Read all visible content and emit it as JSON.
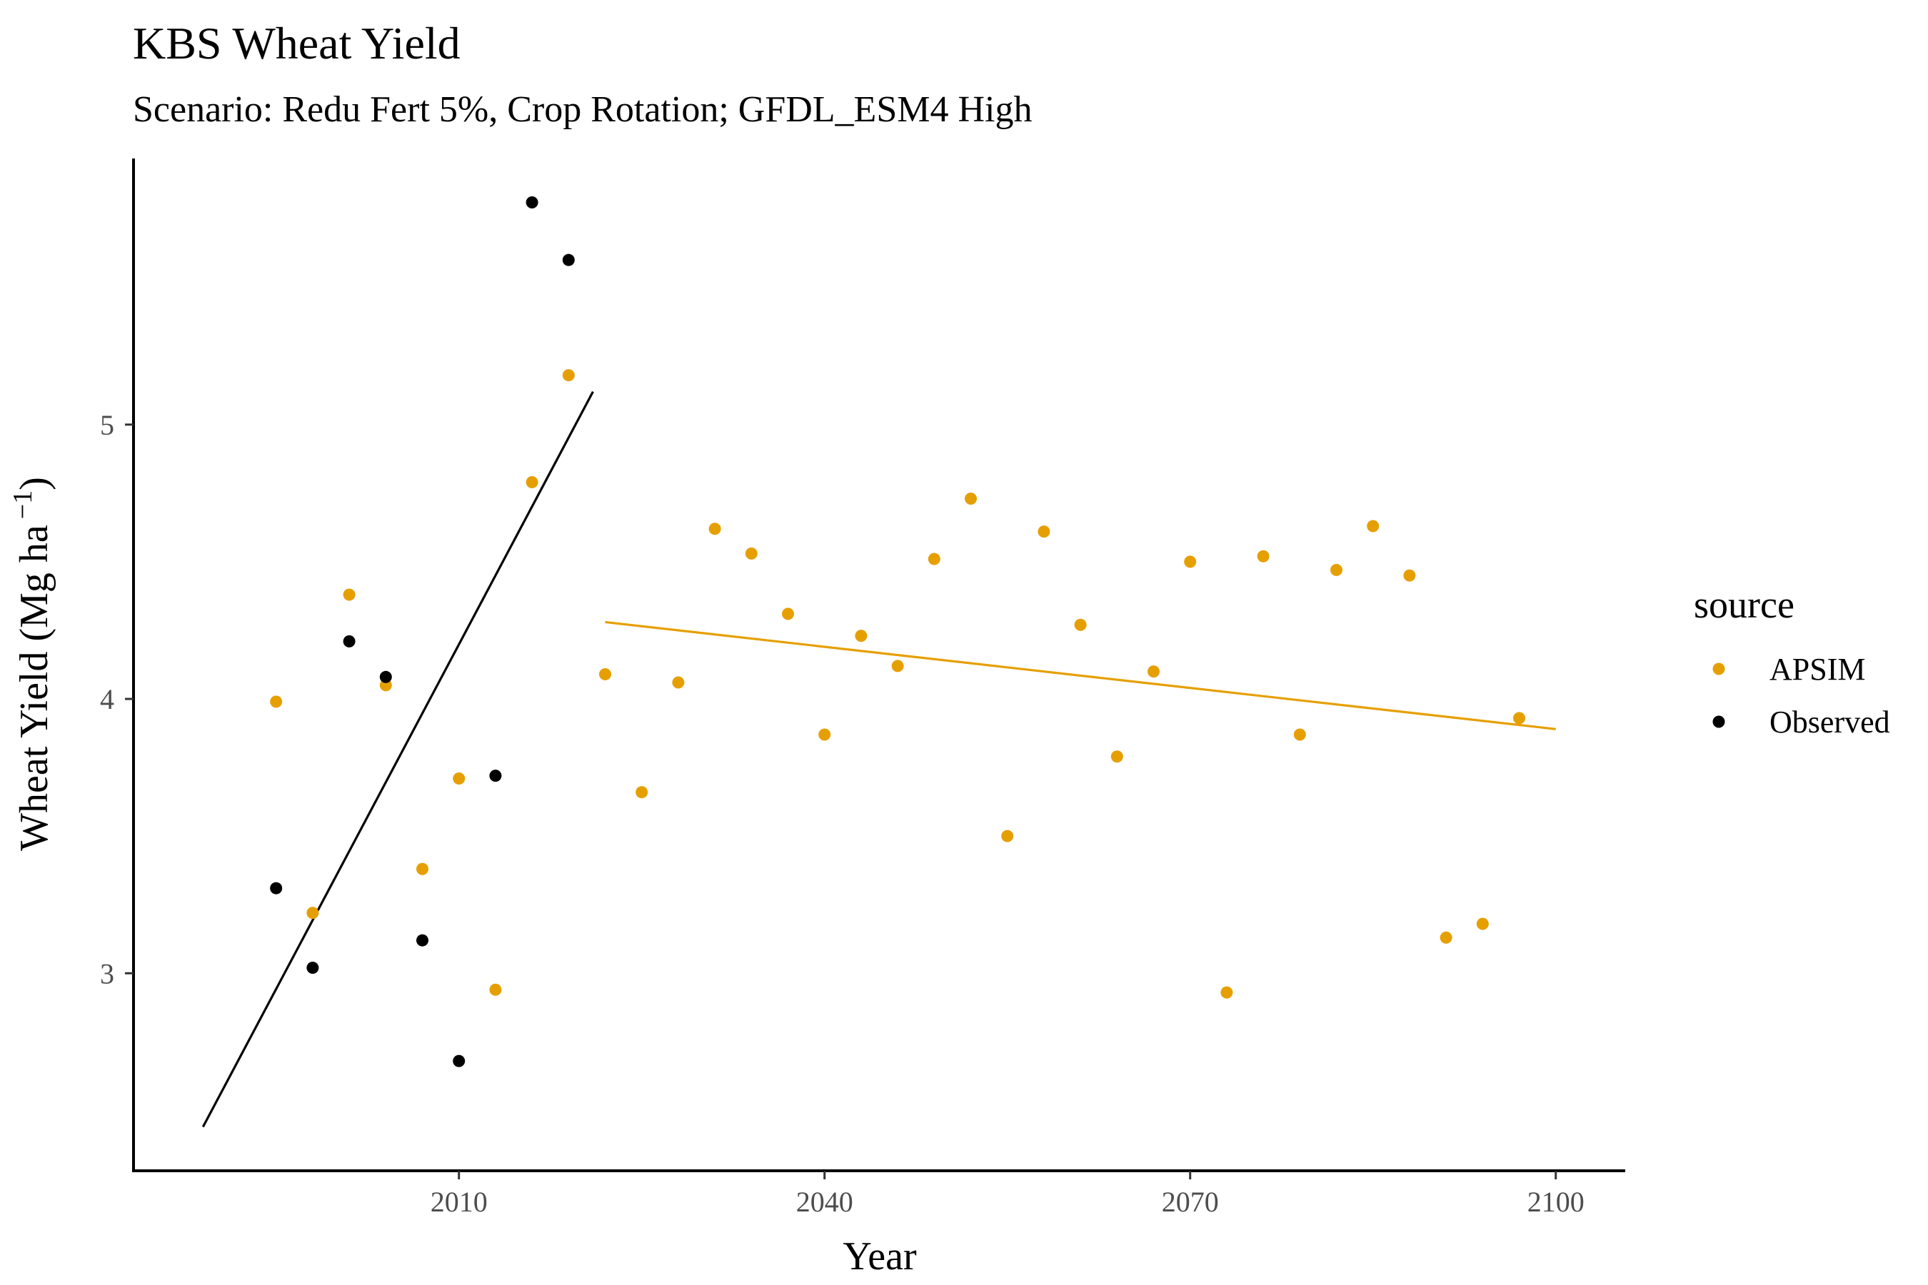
{
  "chart_data": {
    "type": "scatter",
    "title": "KBS Wheat Yield",
    "subtitle": "Scenario: Redu Fert 5%, Crop Rotation; GFDL_ESM4 High",
    "xlabel": "Year",
    "ylabel_main": "Wheat Yield (Mg ha",
    "ylabel_sup": "−1",
    "ylabel_close": ")",
    "xlim": [
      1983.3,
      2105.7
    ],
    "ylim": [
      2.28,
      5.97
    ],
    "xticks": [
      2010,
      2040,
      2070,
      2100
    ],
    "yticks": [
      3,
      4,
      5
    ],
    "grid": false,
    "legend": {
      "title": "source",
      "position": "right"
    },
    "series": [
      {
        "name": "APSIM",
        "color": "#E69F00",
        "points": [
          [
            1995,
            3.99
          ],
          [
            1998,
            3.22
          ],
          [
            2001,
            4.38
          ],
          [
            2004,
            4.05
          ],
          [
            2007,
            3.38
          ],
          [
            2010,
            3.71
          ],
          [
            2013,
            2.94
          ],
          [
            2016,
            4.79
          ],
          [
            2019,
            5.18
          ],
          [
            2022,
            4.09
          ],
          [
            2025,
            3.66
          ],
          [
            2028,
            4.06
          ],
          [
            2031,
            4.62
          ],
          [
            2034,
            4.53
          ],
          [
            2037,
            4.31
          ],
          [
            2040,
            3.87
          ],
          [
            2043,
            4.23
          ],
          [
            2046,
            4.12
          ],
          [
            2049,
            4.51
          ],
          [
            2052,
            4.73
          ],
          [
            2055,
            3.5
          ],
          [
            2058,
            4.61
          ],
          [
            2061,
            4.27
          ],
          [
            2064,
            3.79
          ],
          [
            2067,
            4.1
          ],
          [
            2070,
            4.5
          ],
          [
            2073,
            2.93
          ],
          [
            2076,
            4.52
          ],
          [
            2079,
            3.87
          ],
          [
            2082,
            4.47
          ],
          [
            2085,
            4.63
          ],
          [
            2088,
            4.45
          ],
          [
            2091,
            3.13
          ],
          [
            2094,
            3.18
          ],
          [
            2097,
            3.93
          ]
        ],
        "trend": [
          [
            2022,
            4.28
          ],
          [
            2100,
            3.89
          ]
        ]
      },
      {
        "name": "Observed",
        "color": "#000000",
        "points": [
          [
            1995,
            3.31
          ],
          [
            1998,
            3.02
          ],
          [
            2001,
            4.21
          ],
          [
            2004,
            4.08
          ],
          [
            2007,
            3.12
          ],
          [
            2010,
            2.68
          ],
          [
            2013,
            3.72
          ],
          [
            2016,
            5.81
          ],
          [
            2019,
            5.6
          ]
        ],
        "trend": [
          [
            1989,
            2.44
          ],
          [
            2021,
            5.12
          ]
        ]
      }
    ]
  }
}
